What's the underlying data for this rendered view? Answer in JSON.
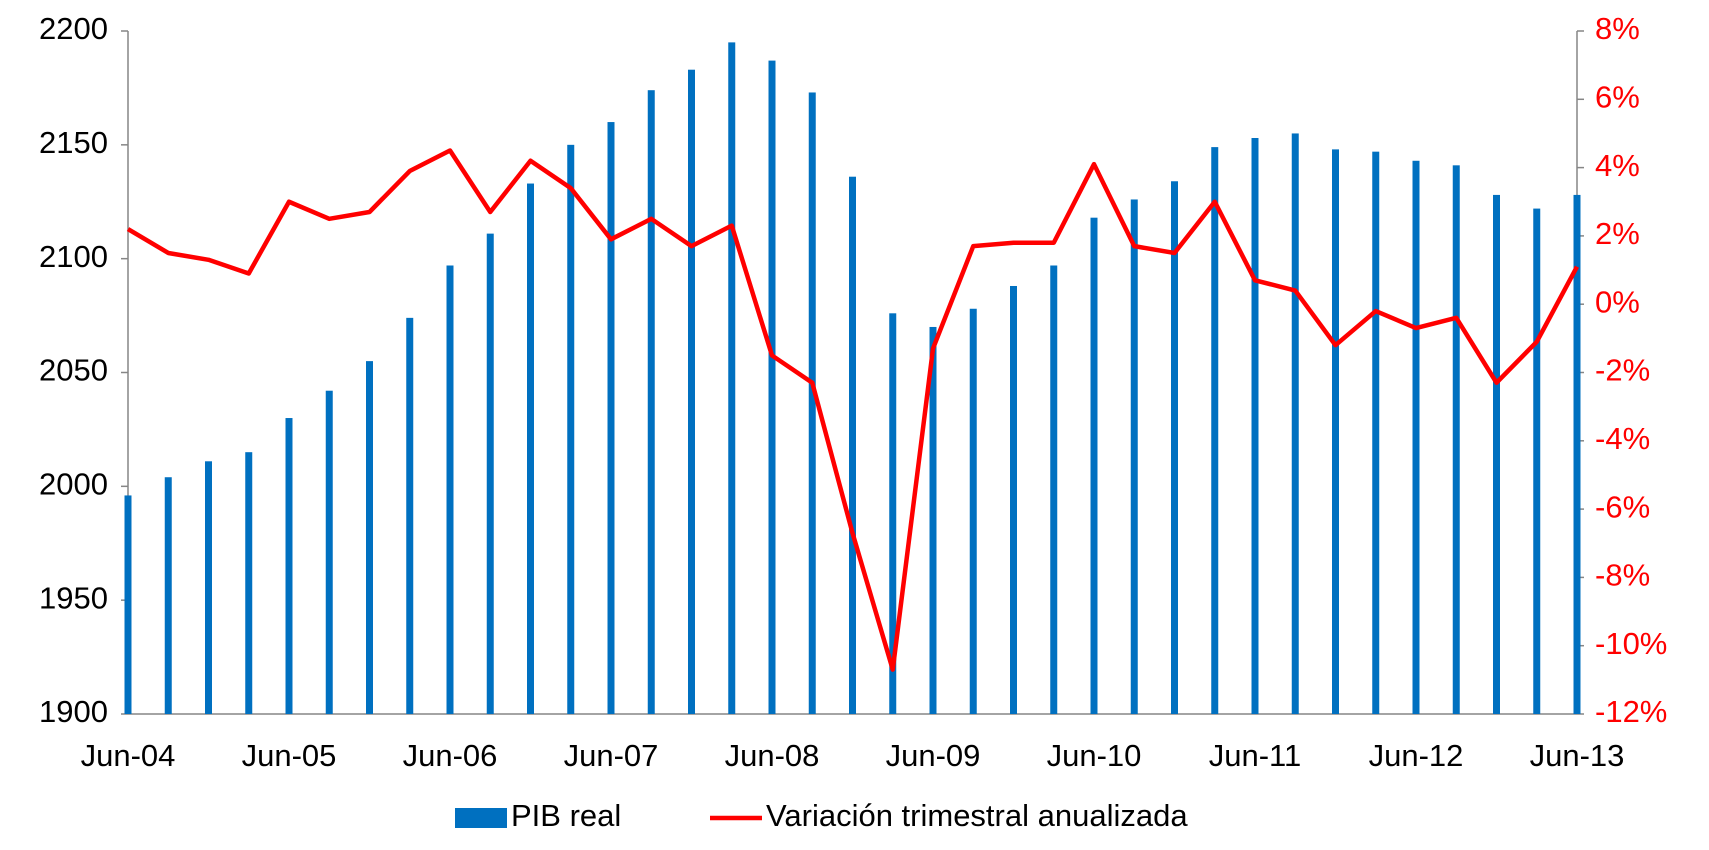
{
  "chart_data": {
    "type": "combo",
    "categories": [
      "Jun-04",
      null,
      null,
      null,
      "Jun-05",
      null,
      null,
      null,
      "Jun-06",
      null,
      null,
      null,
      "Jun-07",
      null,
      null,
      null,
      "Jun-08",
      null,
      null,
      null,
      "Jun-09",
      null,
      null,
      null,
      "Jun-10",
      null,
      null,
      null,
      "Jun-11",
      null,
      null,
      null,
      "Jun-12",
      null,
      null,
      null,
      "Jun-13"
    ],
    "series": [
      {
        "name": "PIB real",
        "type": "bar",
        "axis": "y",
        "color": "#0070c0",
        "values": [
          1996,
          2004,
          2011,
          2015,
          2030,
          2042,
          2055,
          2074,
          2097,
          2111,
          2133,
          2150,
          2160,
          2174,
          2183,
          2195,
          2187,
          2173,
          2136,
          2076,
          2070,
          2078,
          2088,
          2097,
          2118,
          2126,
          2134,
          2149,
          2153,
          2155,
          2148,
          2147,
          2143,
          2141,
          2128,
          2122,
          2128
        ]
      },
      {
        "name": "Variación trimestral anualizada",
        "type": "line",
        "axis": "y2",
        "color": "#ff0000",
        "values": [
          2.2,
          1.5,
          1.3,
          0.9,
          3.0,
          2.5,
          2.7,
          3.9,
          4.5,
          2.7,
          4.2,
          3.4,
          1.9,
          2.5,
          1.7,
          2.3,
          -1.5,
          -2.3,
          -6.7,
          -10.7,
          -1.3,
          1.7,
          1.8,
          1.8,
          4.1,
          1.7,
          1.5,
          3.0,
          0.7,
          0.4,
          -1.2,
          -0.2,
          -0.7,
          -0.4,
          -2.3,
          -1.1,
          1.1
        ]
      }
    ],
    "ylim": [
      1900,
      2200
    ],
    "yticks": [
      1900,
      1950,
      2000,
      2050,
      2100,
      2150,
      2200
    ],
    "y2lim": [
      -12,
      8
    ],
    "y2ticks": [
      {
        "value": -12,
        "label": "-12%"
      },
      {
        "value": -10,
        "label": "-10%"
      },
      {
        "value": -8,
        "label": "-8%"
      },
      {
        "value": -6,
        "label": "-6%"
      },
      {
        "value": -4,
        "label": "-4%"
      },
      {
        "value": -2,
        "label": "-2%"
      },
      {
        "value": 0,
        "label": "0%"
      },
      {
        "value": 2,
        "label": "2%"
      },
      {
        "value": 4,
        "label": "4%"
      },
      {
        "value": 6,
        "label": "6%"
      },
      {
        "value": 8,
        "label": "8%"
      }
    ],
    "y2color": "#ff0000",
    "grid": false,
    "legend": "bottom"
  }
}
